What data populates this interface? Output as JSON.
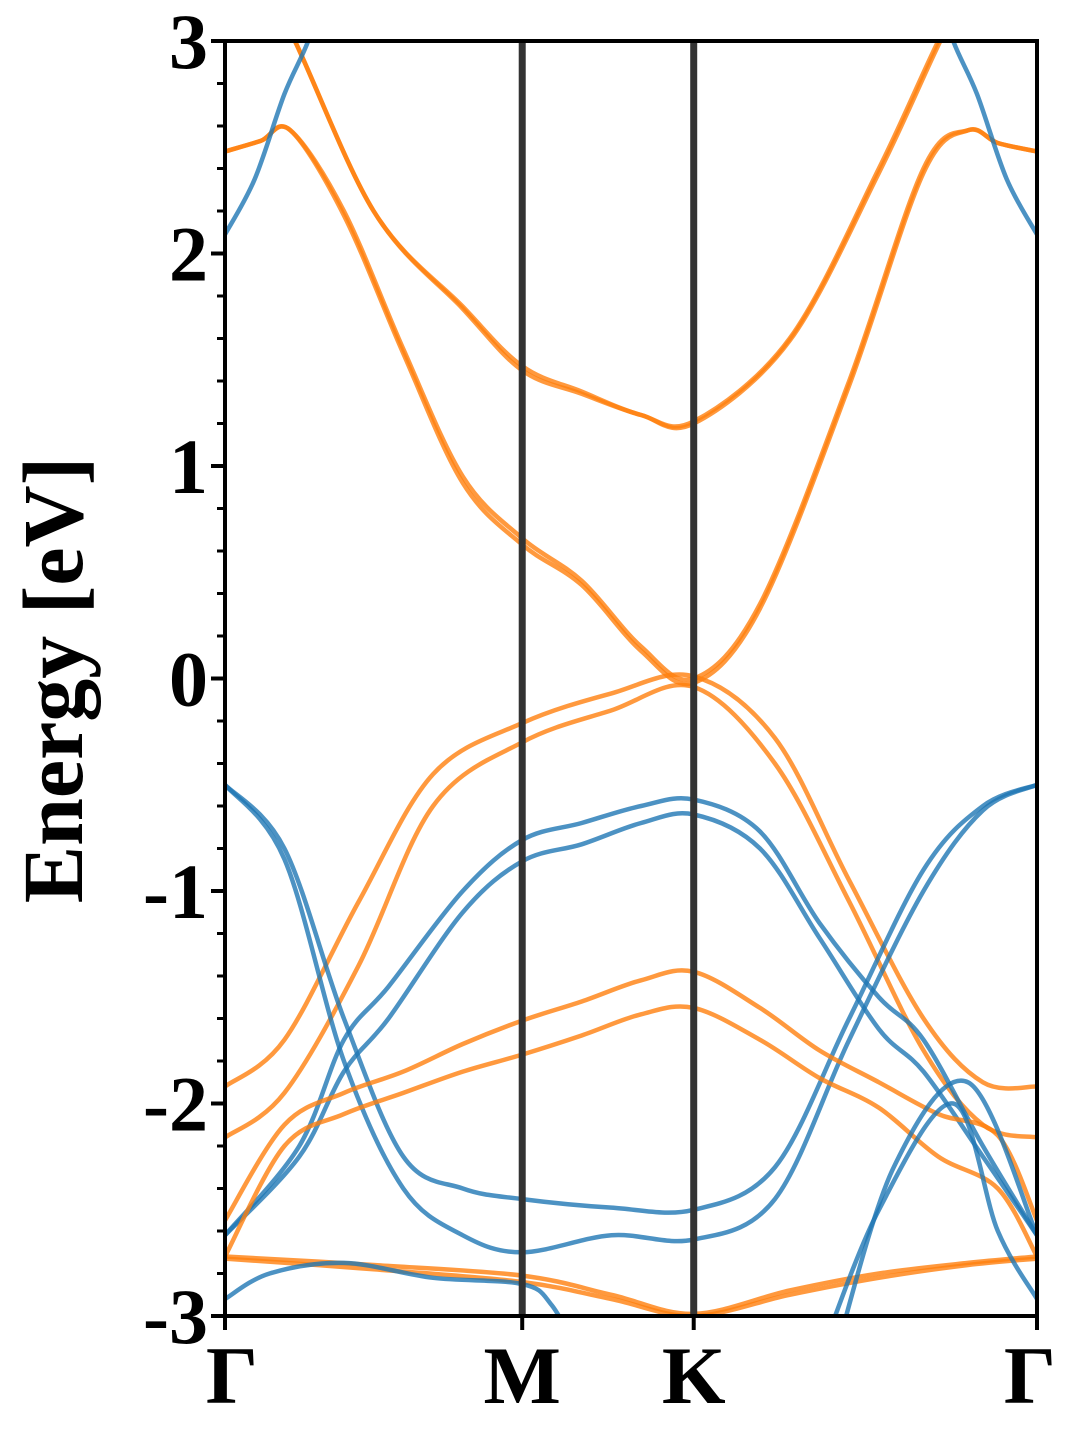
{
  "chart_data": {
    "type": "line",
    "title": "",
    "xlabel": "",
    "ylabel": "Energy [eV]",
    "ylim": [
      -3,
      3
    ],
    "yticks": [
      "-3",
      "-2",
      "-1",
      "0",
      "1",
      "2",
      "3"
    ],
    "ytick_values": [
      -3,
      -2,
      -1,
      0,
      1,
      2,
      3
    ],
    "grid": false,
    "legend": "none",
    "high_symmetry_points": [
      {
        "label": "Γ",
        "x": 0
      },
      {
        "label": "M",
        "x": 1
      },
      {
        "label": "K",
        "x": 1.577
      },
      {
        "label": "Γ",
        "x": 2.732
      }
    ],
    "colors": {
      "blue": "#1f77b4",
      "orange": "#ff7f0e",
      "divider": "#333333"
    },
    "series": [
      {
        "color": "orange",
        "x": [
          0,
          0.2,
          0.5,
          0.8,
          1.0,
          1.2,
          1.4,
          1.577,
          1.9,
          2.2,
          2.4,
          2.55,
          2.732
        ],
        "values": [
          3.5,
          3.1,
          2.2,
          1.75,
          1.47,
          1.35,
          1.24,
          1.21,
          1.6,
          2.4,
          3.0,
          3.4,
          3.6
        ]
      },
      {
        "color": "orange",
        "x": [
          0,
          0.2,
          0.5,
          0.8,
          1.0,
          1.2,
          1.4,
          1.577,
          1.9,
          2.2,
          2.4,
          2.55,
          2.732
        ],
        "values": [
          3.5,
          3.1,
          2.2,
          1.74,
          1.45,
          1.34,
          1.24,
          1.2,
          1.59,
          2.38,
          2.98,
          3.4,
          3.6
        ]
      },
      {
        "color": "orange",
        "x": [
          0,
          0.12,
          0.22,
          0.4,
          0.6,
          0.8,
          1.0,
          1.2,
          1.4,
          1.577,
          1.8,
          2.1,
          2.35,
          2.5,
          2.6,
          2.732
        ],
        "values": [
          2.48,
          2.53,
          2.58,
          2.2,
          1.55,
          0.95,
          0.66,
          0.46,
          0.15,
          0.0,
          0.35,
          1.4,
          2.4,
          2.58,
          2.52,
          2.48
        ]
      },
      {
        "color": "orange",
        "x": [
          0,
          0.12,
          0.22,
          0.4,
          0.6,
          0.8,
          1.0,
          1.2,
          1.4,
          1.577,
          1.8,
          2.1,
          2.35,
          2.5,
          2.6,
          2.732
        ],
        "values": [
          2.48,
          2.53,
          2.58,
          2.18,
          1.53,
          0.92,
          0.63,
          0.44,
          0.13,
          -0.02,
          0.33,
          1.38,
          2.38,
          2.58,
          2.52,
          2.48
        ]
      },
      {
        "color": "blue",
        "x": [
          0,
          0.1,
          0.2,
          0.28,
          0.35
        ],
        "values": [
          2.09,
          2.35,
          2.75,
          3.0,
          3.3
        ]
      },
      {
        "color": "blue",
        "x": [
          2.38,
          2.45,
          2.53,
          2.63,
          2.732
        ],
        "values": [
          3.3,
          3.0,
          2.75,
          2.35,
          2.09
        ]
      },
      {
        "color": "orange",
        "x": [
          0,
          0.2,
          0.45,
          0.7,
          1.0,
          1.3,
          1.577,
          1.85,
          2.1,
          2.35,
          2.55,
          2.732
        ],
        "values": [
          -1.92,
          -1.7,
          -1.05,
          -0.45,
          -0.21,
          -0.07,
          0.01,
          -0.28,
          -0.95,
          -1.6,
          -1.9,
          -1.92
        ]
      },
      {
        "color": "orange",
        "x": [
          0,
          0.2,
          0.45,
          0.7,
          1.0,
          1.3,
          1.577,
          1.85,
          2.1,
          2.35,
          2.55,
          2.732
        ],
        "values": [
          -2.16,
          -1.95,
          -1.35,
          -0.6,
          -0.3,
          -0.15,
          -0.04,
          -0.4,
          -1.05,
          -1.75,
          -2.1,
          -2.16
        ]
      },
      {
        "color": "blue",
        "x": [
          0,
          0.2,
          0.4,
          0.6,
          0.8,
          1.0,
          1.3,
          1.577,
          1.85,
          2.1,
          2.35,
          2.55,
          2.732
        ],
        "values": [
          -0.5,
          -0.8,
          -1.6,
          -2.25,
          -2.4,
          -2.45,
          -2.49,
          -2.5,
          -2.3,
          -1.6,
          -0.9,
          -0.6,
          -0.5
        ]
      },
      {
        "color": "blue",
        "x": [
          0,
          0.2,
          0.4,
          0.6,
          0.8,
          1.0,
          1.3,
          1.577,
          1.85,
          2.1,
          2.35,
          2.55,
          2.732
        ],
        "values": [
          -0.5,
          -0.85,
          -1.8,
          -2.4,
          -2.62,
          -2.7,
          -2.62,
          -2.64,
          -2.45,
          -1.7,
          -1.0,
          -0.62,
          -0.5
        ]
      },
      {
        "color": "blue",
        "x": [
          0,
          0.25,
          0.4,
          0.55,
          0.8,
          1.0,
          1.2,
          1.4,
          1.577,
          1.8,
          2.0,
          2.2,
          2.35,
          2.55,
          2.732
        ],
        "values": [
          -2.62,
          -2.2,
          -1.7,
          -1.45,
          -1.0,
          -0.76,
          -0.68,
          -0.6,
          -0.57,
          -0.72,
          -1.15,
          -1.5,
          -1.7,
          -2.2,
          -2.62
        ]
      },
      {
        "color": "blue",
        "x": [
          0,
          0.25,
          0.4,
          0.55,
          0.8,
          1.0,
          1.2,
          1.4,
          1.577,
          1.8,
          2.0,
          2.2,
          2.35,
          2.55,
          2.732
        ],
        "values": [
          -2.62,
          -2.25,
          -1.85,
          -1.6,
          -1.1,
          -0.86,
          -0.78,
          -0.68,
          -0.64,
          -0.8,
          -1.22,
          -1.65,
          -1.85,
          -2.25,
          -2.62
        ]
      },
      {
        "color": "orange",
        "x": [
          0,
          0.2,
          0.4,
          0.6,
          0.8,
          1.0,
          1.2,
          1.4,
          1.577,
          1.8,
          2.0,
          2.2,
          2.4,
          2.6,
          2.732
        ],
        "values": [
          -2.55,
          -2.1,
          -1.95,
          -1.85,
          -1.72,
          -1.61,
          -1.52,
          -1.42,
          -1.38,
          -1.55,
          -1.75,
          -1.9,
          -2.05,
          -2.15,
          -2.55
        ]
      },
      {
        "color": "orange",
        "x": [
          0,
          0.2,
          0.4,
          0.6,
          0.8,
          1.0,
          1.2,
          1.4,
          1.577,
          1.8,
          2.0,
          2.2,
          2.4,
          2.6,
          2.732
        ],
        "values": [
          -2.72,
          -2.2,
          -2.05,
          -1.95,
          -1.85,
          -1.77,
          -1.68,
          -1.58,
          -1.55,
          -1.7,
          -1.88,
          -2.02,
          -2.25,
          -2.4,
          -2.72
        ]
      },
      {
        "color": "orange",
        "x": [
          0,
          0.5,
          1.0,
          1.3,
          1.577,
          1.9,
          2.2,
          2.5,
          2.732
        ],
        "values": [
          -2.72,
          -2.76,
          -2.81,
          -2.9,
          -2.99,
          -2.88,
          -2.8,
          -2.75,
          -2.72
        ]
      },
      {
        "color": "orange",
        "x": [
          0,
          0.5,
          1.0,
          1.3,
          1.577,
          1.9,
          2.2,
          2.5,
          2.732
        ],
        "values": [
          -2.73,
          -2.78,
          -2.84,
          -2.92,
          -3.0,
          -2.9,
          -2.82,
          -2.76,
          -2.73
        ]
      },
      {
        "color": "blue",
        "x": [
          0,
          0.15,
          0.4,
          0.7,
          1.0,
          1.1,
          1.2
        ],
        "values": [
          -2.92,
          -2.8,
          -2.75,
          -2.82,
          -2.85,
          -2.95,
          -3.2
        ]
      },
      {
        "color": "blue",
        "x": [
          2.0,
          2.2,
          2.45,
          2.6,
          2.732
        ],
        "values": [
          -3.2,
          -2.5,
          -2.0,
          -2.6,
          -2.92
        ]
      },
      {
        "color": "blue",
        "x": [
          2.05,
          2.25,
          2.5,
          2.732
        ],
        "values": [
          -3.2,
          -2.3,
          -1.9,
          -2.62
        ]
      }
    ]
  }
}
